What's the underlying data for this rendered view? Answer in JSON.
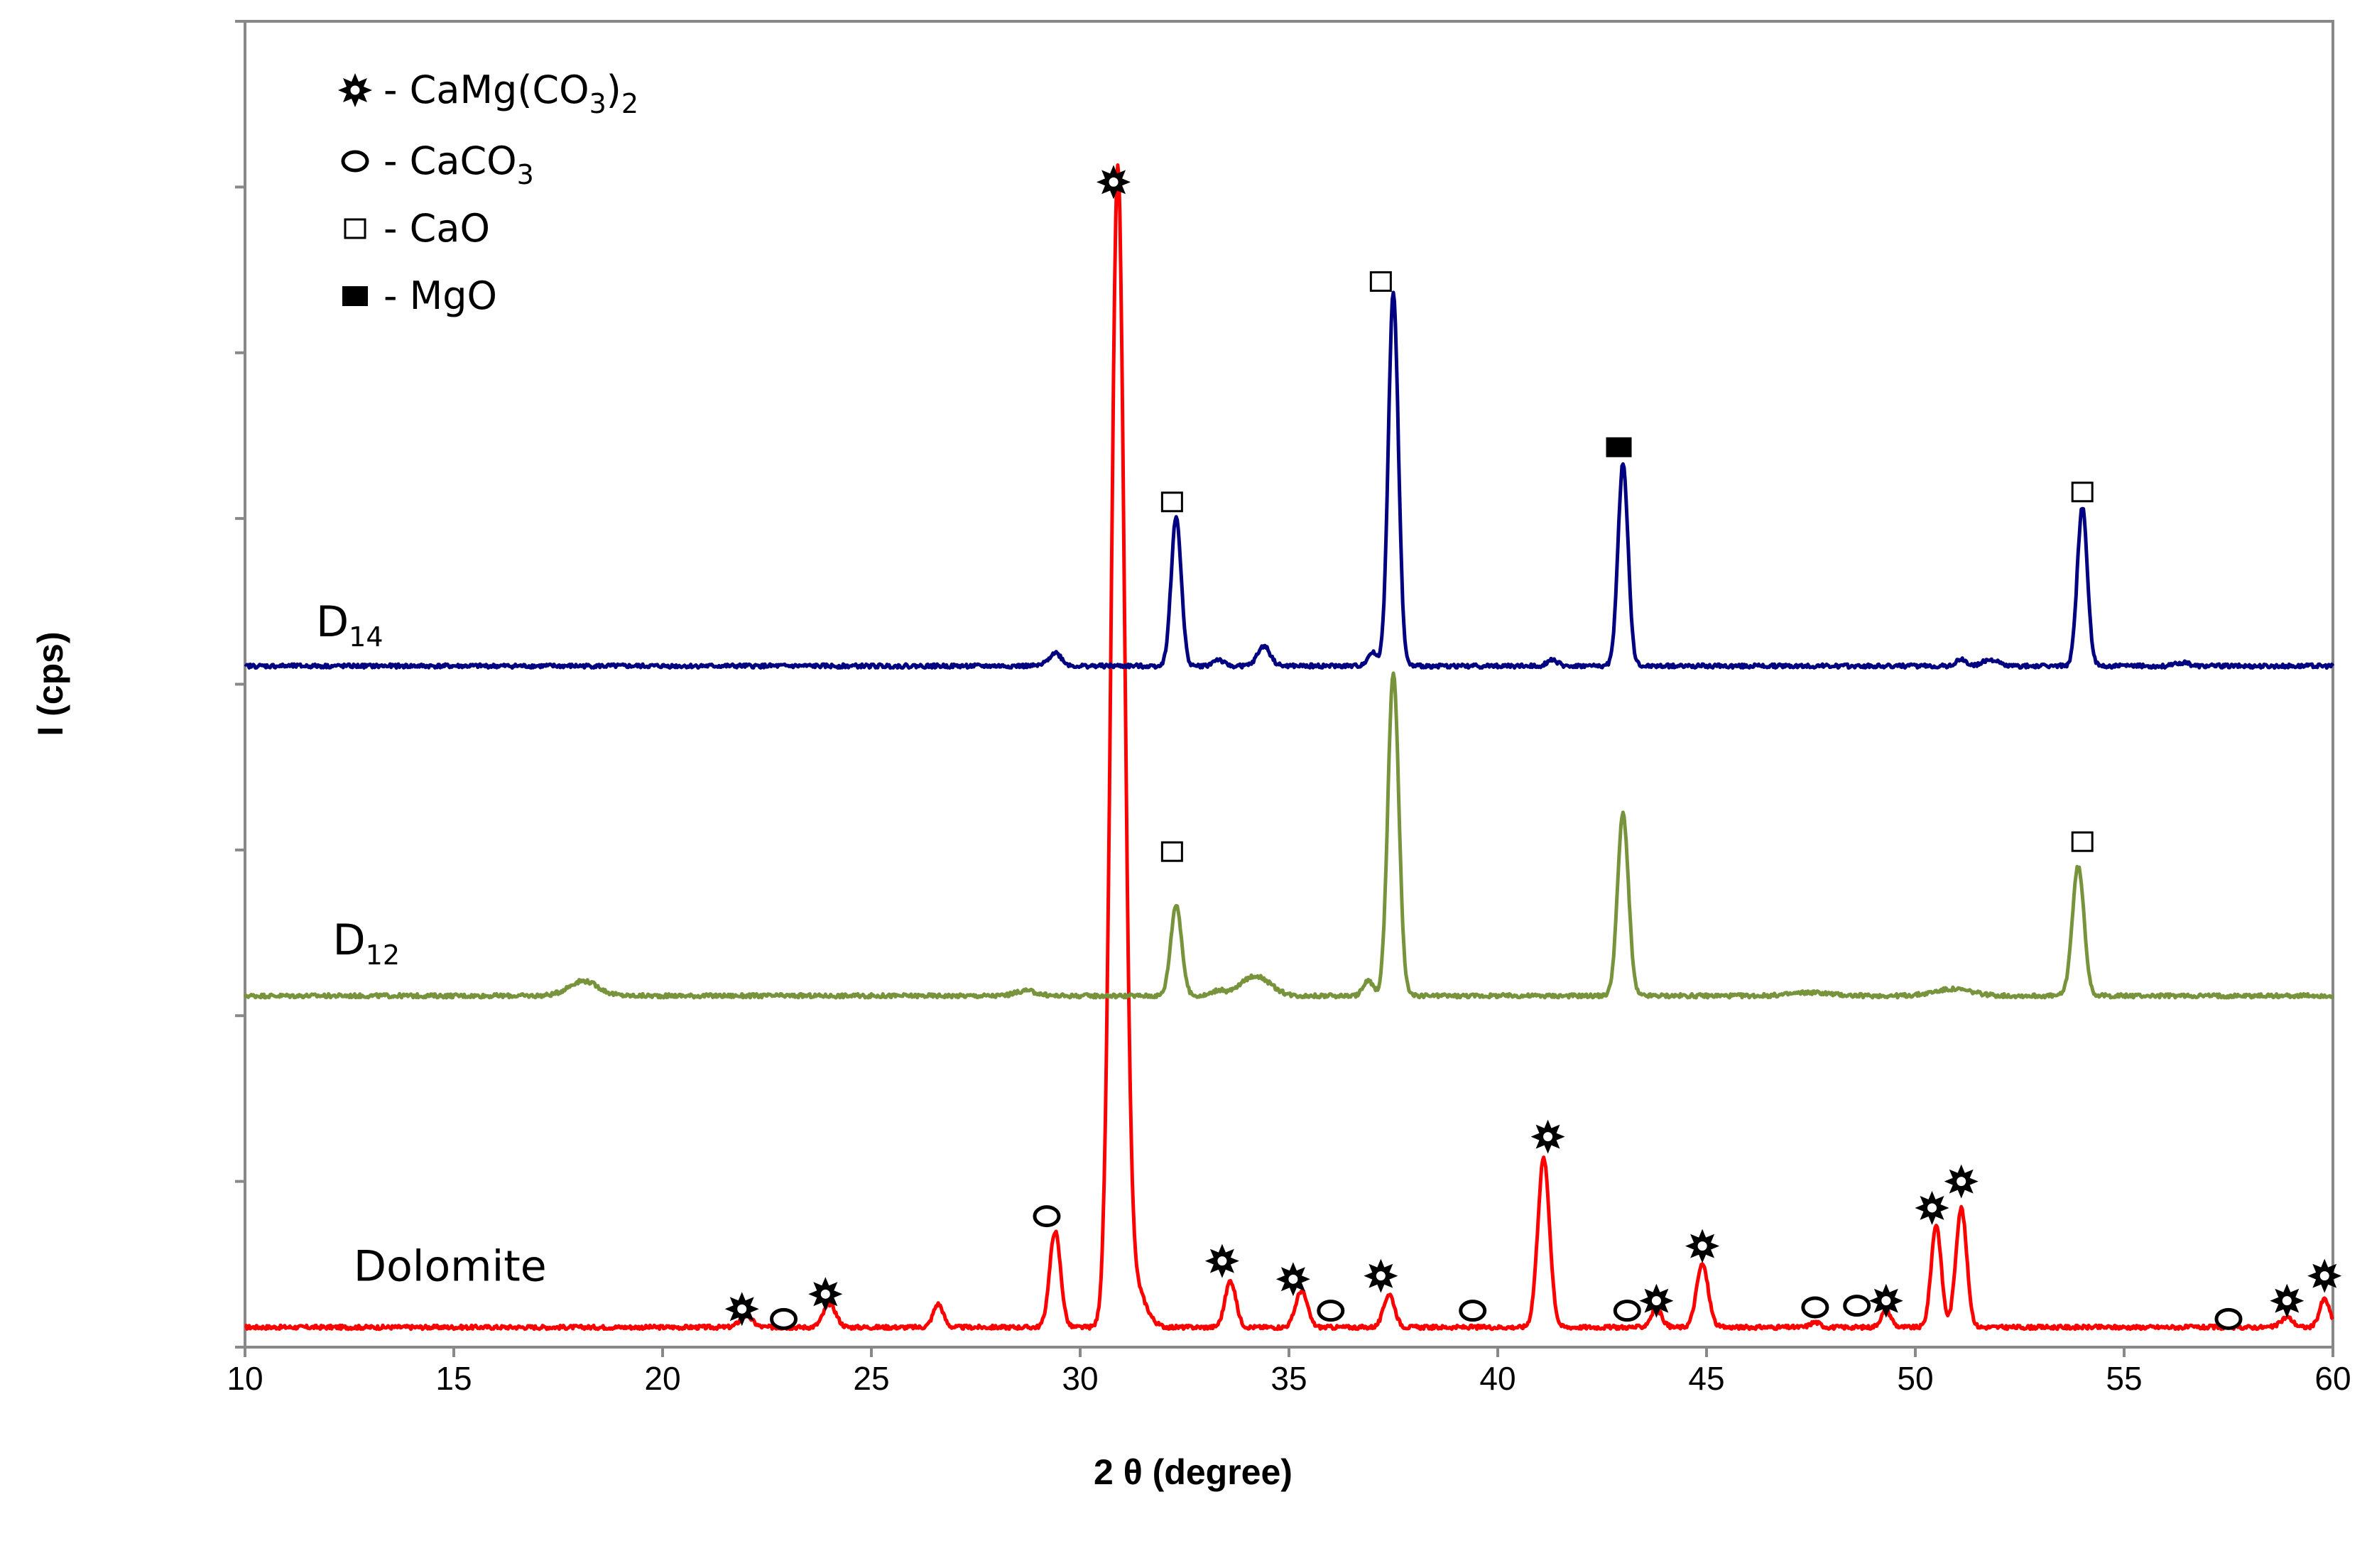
{
  "chart_data": {
    "type": "line",
    "title": "",
    "xlabel": "2 θ (degree)",
    "ylabel": "I (cps)",
    "xlim": [
      10,
      60
    ],
    "ylim": [
      0,
      800
    ],
    "x_ticks": [
      10,
      15,
      20,
      25,
      30,
      35,
      40,
      45,
      50,
      55,
      60
    ],
    "y_tick_count": 8,
    "grid": false,
    "legend_position": "top-left",
    "legend": [
      {
        "symbol": "star",
        "label": "- CaMg(CO",
        "sub": "3",
        "suffix": ")",
        "sub2": "2"
      },
      {
        "symbol": "circle",
        "label": "- CaCO",
        "sub": "3",
        "suffix": "",
        "sub2": ""
      },
      {
        "symbol": "open-square",
        "label": "- CaO",
        "sub": "",
        "suffix": "",
        "sub2": ""
      },
      {
        "symbol": "filled-square",
        "label": "- MgO",
        "sub": "",
        "suffix": "",
        "sub2": ""
      }
    ],
    "series": [
      {
        "name": "Dolomite",
        "label_main": "Dolomite",
        "label_sub": "",
        "label_x": 12.6,
        "label_y": 40,
        "color": "#ff0000",
        "baseline": 12,
        "noise": 1.2,
        "peaks": [
          [
            22.0,
            7,
            0.15
          ],
          [
            24.0,
            14,
            0.15
          ],
          [
            26.6,
            14,
            0.12
          ],
          [
            29.4,
            58,
            0.13
          ],
          [
            30.9,
            695,
            0.16
          ],
          [
            31.3,
            25,
            0.25
          ],
          [
            33.6,
            28,
            0.13
          ],
          [
            35.3,
            22,
            0.14
          ],
          [
            37.4,
            20,
            0.13
          ],
          [
            41.1,
            102,
            0.14
          ],
          [
            43.8,
            11,
            0.13
          ],
          [
            44.9,
            38,
            0.14
          ],
          [
            47.6,
            3,
            0.12
          ],
          [
            49.3,
            10,
            0.12
          ],
          [
            50.5,
            62,
            0.12
          ],
          [
            51.1,
            72,
            0.13
          ],
          [
            58.9,
            6,
            0.14
          ],
          [
            59.8,
            17,
            0.12
          ]
        ]
      },
      {
        "name": "D12",
        "label_main": "D",
        "label_sub": "12",
        "label_x": 12.1,
        "label_y": 237,
        "color": "#77933c",
        "baseline": 212,
        "noise": 1.2,
        "peaks": [
          [
            18.1,
            9,
            0.35
          ],
          [
            28.7,
            3,
            0.25
          ],
          [
            32.3,
            55,
            0.13
          ],
          [
            33.3,
            3,
            0.15
          ],
          [
            34.2,
            12,
            0.35
          ],
          [
            36.9,
            9,
            0.12
          ],
          [
            37.5,
            195,
            0.13
          ],
          [
            43.0,
            110,
            0.13
          ],
          [
            47.5,
            2,
            0.45
          ],
          [
            50.9,
            4,
            0.45
          ],
          [
            53.9,
            78,
            0.14
          ]
        ]
      },
      {
        "name": "D14",
        "label_main": "D",
        "label_sub": "14",
        "label_x": 11.7,
        "label_y": 429,
        "color": "#000080",
        "baseline": 411,
        "noise": 1.2,
        "peaks": [
          [
            29.4,
            8,
            0.15
          ],
          [
            32.3,
            90,
            0.12
          ],
          [
            33.3,
            4,
            0.12
          ],
          [
            34.4,
            12,
            0.15
          ],
          [
            37.0,
            8,
            0.12
          ],
          [
            37.5,
            225,
            0.12
          ],
          [
            41.3,
            4,
            0.12
          ],
          [
            43.0,
            122,
            0.12
          ],
          [
            51.1,
            4,
            0.12
          ],
          [
            51.8,
            4,
            0.18
          ],
          [
            54.0,
            96,
            0.12
          ],
          [
            56.4,
            2,
            0.15
          ]
        ]
      }
    ],
    "markers": [
      {
        "symbol": "star",
        "x": 30.8,
        "y": 703
      },
      {
        "symbol": "star",
        "x": 21.9,
        "y": 23
      },
      {
        "symbol": "circle",
        "x": 22.9,
        "y": 17
      },
      {
        "symbol": "star",
        "x": 23.9,
        "y": 32
      },
      {
        "symbol": "circle",
        "x": 29.2,
        "y": 79
      },
      {
        "symbol": "star",
        "x": 33.4,
        "y": 52
      },
      {
        "symbol": "star",
        "x": 35.1,
        "y": 41
      },
      {
        "symbol": "circle",
        "x": 36.0,
        "y": 22
      },
      {
        "symbol": "star",
        "x": 37.2,
        "y": 43
      },
      {
        "symbol": "circle",
        "x": 39.4,
        "y": 22
      },
      {
        "symbol": "star",
        "x": 41.2,
        "y": 127
      },
      {
        "symbol": "circle",
        "x": 43.1,
        "y": 22
      },
      {
        "symbol": "star",
        "x": 43.8,
        "y": 28
      },
      {
        "symbol": "star",
        "x": 44.9,
        "y": 61
      },
      {
        "symbol": "circle",
        "x": 47.6,
        "y": 24
      },
      {
        "symbol": "circle",
        "x": 48.6,
        "y": 25
      },
      {
        "symbol": "star",
        "x": 49.3,
        "y": 28
      },
      {
        "symbol": "star",
        "x": 50.4,
        "y": 84
      },
      {
        "symbol": "star",
        "x": 51.1,
        "y": 100
      },
      {
        "symbol": "circle",
        "x": 57.5,
        "y": 17
      },
      {
        "symbol": "star",
        "x": 58.9,
        "y": 28
      },
      {
        "symbol": "star",
        "x": 59.8,
        "y": 43
      },
      {
        "symbol": "open-square",
        "x": 32.2,
        "y": 299
      },
      {
        "symbol": "open-square",
        "x": 54.0,
        "y": 305
      },
      {
        "symbol": "open-square",
        "x": 32.2,
        "y": 510
      },
      {
        "symbol": "open-square",
        "x": 37.2,
        "y": 643
      },
      {
        "symbol": "filled-square",
        "x": 42.9,
        "y": 543
      },
      {
        "symbol": "open-square",
        "x": 54.0,
        "y": 516
      }
    ]
  }
}
